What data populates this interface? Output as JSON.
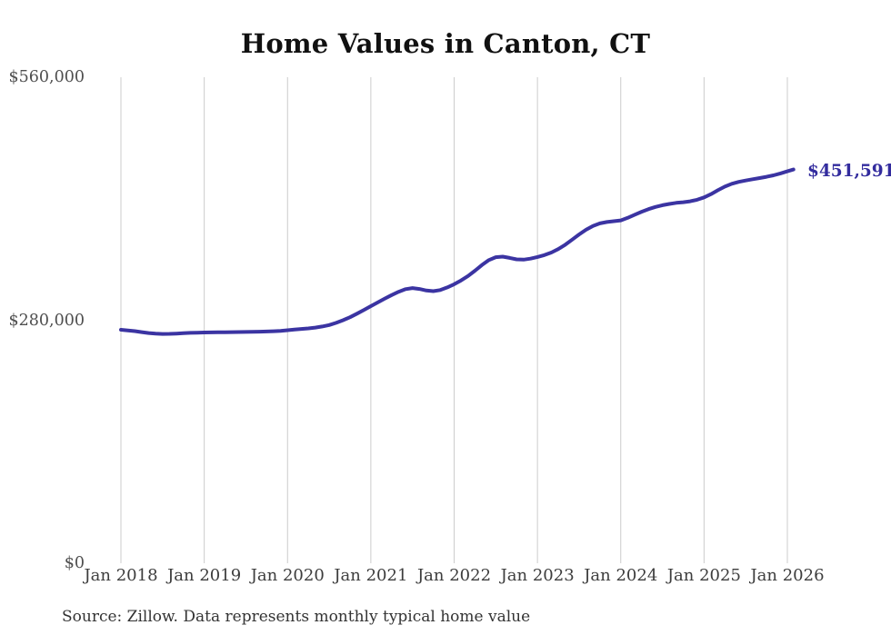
{
  "chart_data": {
    "type": "line",
    "title": "Home Values in Canton, CT",
    "source_note": "Source: Zillow. Data represents monthly typical home value",
    "end_label": "$451,591",
    "last_value": 451591,
    "series_name": "Monthly typical home value",
    "frequency": "monthly",
    "start_month": "Jan 2018",
    "end_month": "Jan 2026",
    "x_tick_labels": [
      "Jan 2018",
      "Jan 2019",
      "Jan 2020",
      "Jan 2021",
      "Jan 2022",
      "Jan 2023",
      "Jan 2024",
      "Jan 2025",
      "Jan 2026"
    ],
    "y_ticks": [
      {
        "label": "$0",
        "value": 0
      },
      {
        "label": "$280,000",
        "value": 280000
      },
      {
        "label": "$560,000",
        "value": 560000
      }
    ],
    "ylim": [
      0,
      560000
    ],
    "grid": "vertical-only",
    "line_color": "#3b34a2",
    "grid_color": "#cccccc",
    "values": [
      269000,
      268300,
      267400,
      266300,
      265200,
      264500,
      264200,
      264300,
      264600,
      265000,
      265400,
      265700,
      265900,
      266000,
      266100,
      266200,
      266300,
      266400,
      266500,
      266600,
      266800,
      267000,
      267300,
      267800,
      268500,
      269200,
      269900,
      270600,
      271500,
      272800,
      274500,
      277000,
      280000,
      283500,
      287500,
      291800,
      296200,
      300500,
      304800,
      309000,
      312800,
      315800,
      317100,
      316000,
      314200,
      313500,
      314800,
      317800,
      321400,
      325800,
      331000,
      337000,
      343500,
      349300,
      352600,
      353300,
      351800,
      350100,
      349800,
      351000,
      352800,
      355000,
      358000,
      362000,
      367000,
      372800,
      378800,
      384300,
      388700,
      391600,
      393200,
      394100,
      395000,
      398000,
      401500,
      405000,
      408000,
      410500,
      412500,
      414000,
      415200,
      416000,
      417000,
      418800,
      421500,
      425300,
      429800,
      434000,
      437200,
      439400,
      441000,
      442400,
      443800,
      445300,
      447000,
      449200,
      451591
    ]
  }
}
